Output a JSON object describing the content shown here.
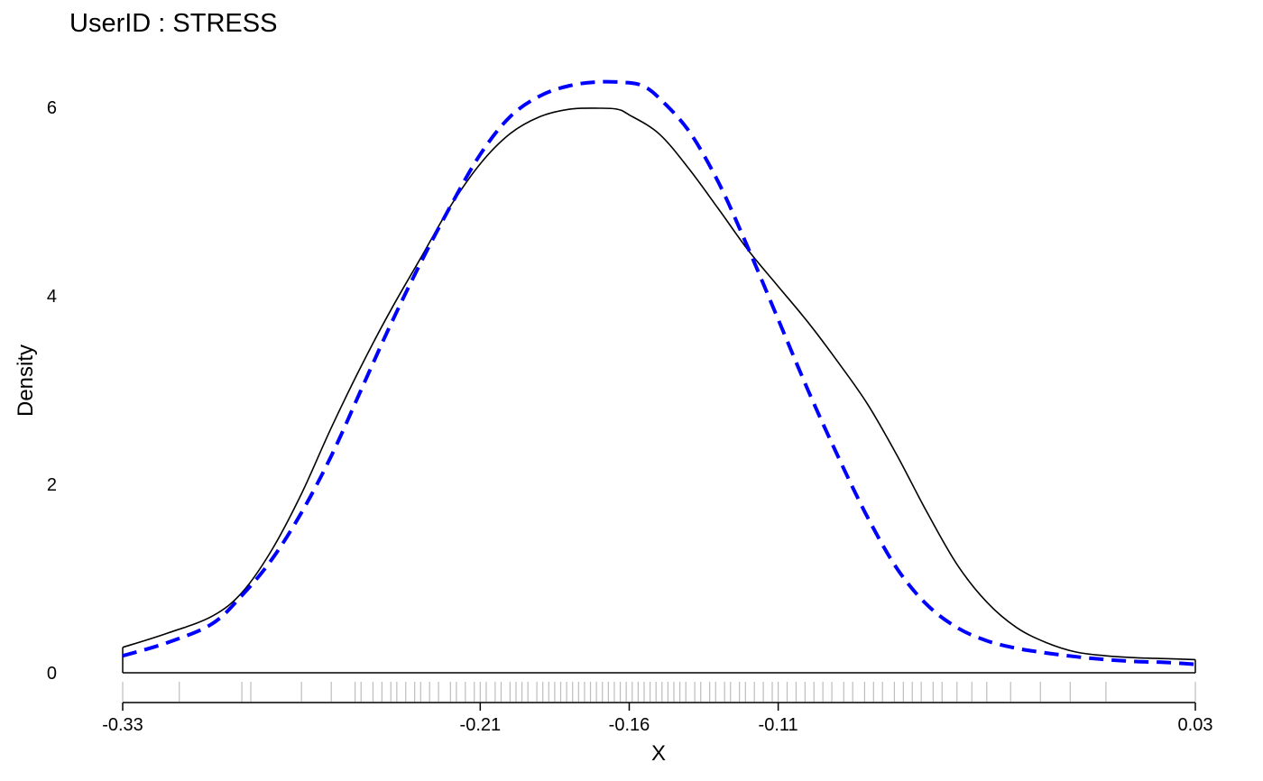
{
  "chart_data": {
    "type": "line",
    "title": "UserID : STRESS",
    "xlabel": "X",
    "ylabel": "Density",
    "xlim": [
      -0.33,
      0.03
    ],
    "ylim": [
      0,
      6.3
    ],
    "x_ticks": [
      -0.33,
      -0.21,
      -0.16,
      -0.11,
      0.03
    ],
    "x_tick_labels": [
      "-0.33",
      "-0.21",
      "-0.16",
      "-0.11",
      "0.03"
    ],
    "y_ticks": [
      0,
      2,
      4,
      6
    ],
    "y_tick_labels": [
      "0",
      "2",
      "4",
      "6"
    ],
    "grid": false,
    "legend": "none",
    "series": [
      {
        "style": "solid",
        "color": "#000000",
        "x": [
          -0.33,
          -0.315,
          -0.3,
          -0.29,
          -0.28,
          -0.27,
          -0.26,
          -0.25,
          -0.24,
          -0.23,
          -0.22,
          -0.21,
          -0.2,
          -0.19,
          -0.18,
          -0.17,
          -0.164,
          -0.16,
          -0.15,
          -0.14,
          -0.13,
          -0.12,
          -0.11,
          -0.1,
          -0.09,
          -0.08,
          -0.07,
          -0.06,
          -0.05,
          -0.04,
          -0.03,
          -0.02,
          -0.01,
          0.0,
          0.01,
          0.02,
          0.03
        ],
        "y": [
          0.27,
          0.42,
          0.6,
          0.85,
          1.3,
          1.9,
          2.6,
          3.25,
          3.85,
          4.4,
          4.95,
          5.4,
          5.72,
          5.9,
          5.98,
          5.99,
          5.98,
          5.92,
          5.72,
          5.35,
          4.92,
          4.48,
          4.1,
          3.72,
          3.3,
          2.85,
          2.3,
          1.7,
          1.15,
          0.75,
          0.48,
          0.32,
          0.22,
          0.18,
          0.16,
          0.15,
          0.14
        ]
      },
      {
        "style": "dashed",
        "color": "#0000ff",
        "x": [
          -0.33,
          -0.315,
          -0.3,
          -0.29,
          -0.28,
          -0.27,
          -0.26,
          -0.25,
          -0.24,
          -0.23,
          -0.22,
          -0.21,
          -0.2,
          -0.19,
          -0.18,
          -0.17,
          -0.16,
          -0.155,
          -0.15,
          -0.14,
          -0.13,
          -0.12,
          -0.11,
          -0.1,
          -0.09,
          -0.08,
          -0.07,
          -0.06,
          -0.05,
          -0.04,
          -0.03,
          -0.02,
          -0.01,
          0.0,
          0.01,
          0.02,
          0.03
        ],
        "y": [
          0.18,
          0.32,
          0.52,
          0.82,
          1.2,
          1.7,
          2.3,
          3.0,
          3.7,
          4.35,
          4.95,
          5.5,
          5.9,
          6.12,
          6.23,
          6.27,
          6.26,
          6.22,
          6.1,
          5.75,
          5.2,
          4.5,
          3.75,
          3.0,
          2.3,
          1.65,
          1.1,
          0.72,
          0.48,
          0.34,
          0.26,
          0.21,
          0.17,
          0.14,
          0.12,
          0.11,
          0.09
        ]
      }
    ],
    "rug": [
      -0.33,
      -0.311,
      -0.29,
      -0.287,
      -0.27,
      -0.26,
      -0.252,
      -0.25,
      -0.246,
      -0.243,
      -0.24,
      -0.238,
      -0.235,
      -0.232,
      -0.23,
      -0.227,
      -0.224,
      -0.22,
      -0.218,
      -0.215,
      -0.212,
      -0.21,
      -0.208,
      -0.205,
      -0.203,
      -0.2,
      -0.198,
      -0.196,
      -0.194,
      -0.191,
      -0.189,
      -0.187,
      -0.185,
      -0.183,
      -0.181,
      -0.179,
      -0.177,
      -0.175,
      -0.173,
      -0.171,
      -0.169,
      -0.167,
      -0.165,
      -0.163,
      -0.161,
      -0.159,
      -0.157,
      -0.155,
      -0.153,
      -0.151,
      -0.149,
      -0.147,
      -0.145,
      -0.143,
      -0.141,
      -0.138,
      -0.136,
      -0.133,
      -0.131,
      -0.128,
      -0.126,
      -0.123,
      -0.121,
      -0.118,
      -0.115,
      -0.112,
      -0.11,
      -0.107,
      -0.104,
      -0.101,
      -0.098,
      -0.095,
      -0.092,
      -0.088,
      -0.085,
      -0.081,
      -0.078,
      -0.075,
      -0.071,
      -0.068,
      -0.065,
      -0.062,
      -0.058,
      -0.055,
      -0.05,
      -0.045,
      -0.04,
      -0.032,
      -0.022,
      -0.012,
      0.0,
      0.03
    ]
  }
}
